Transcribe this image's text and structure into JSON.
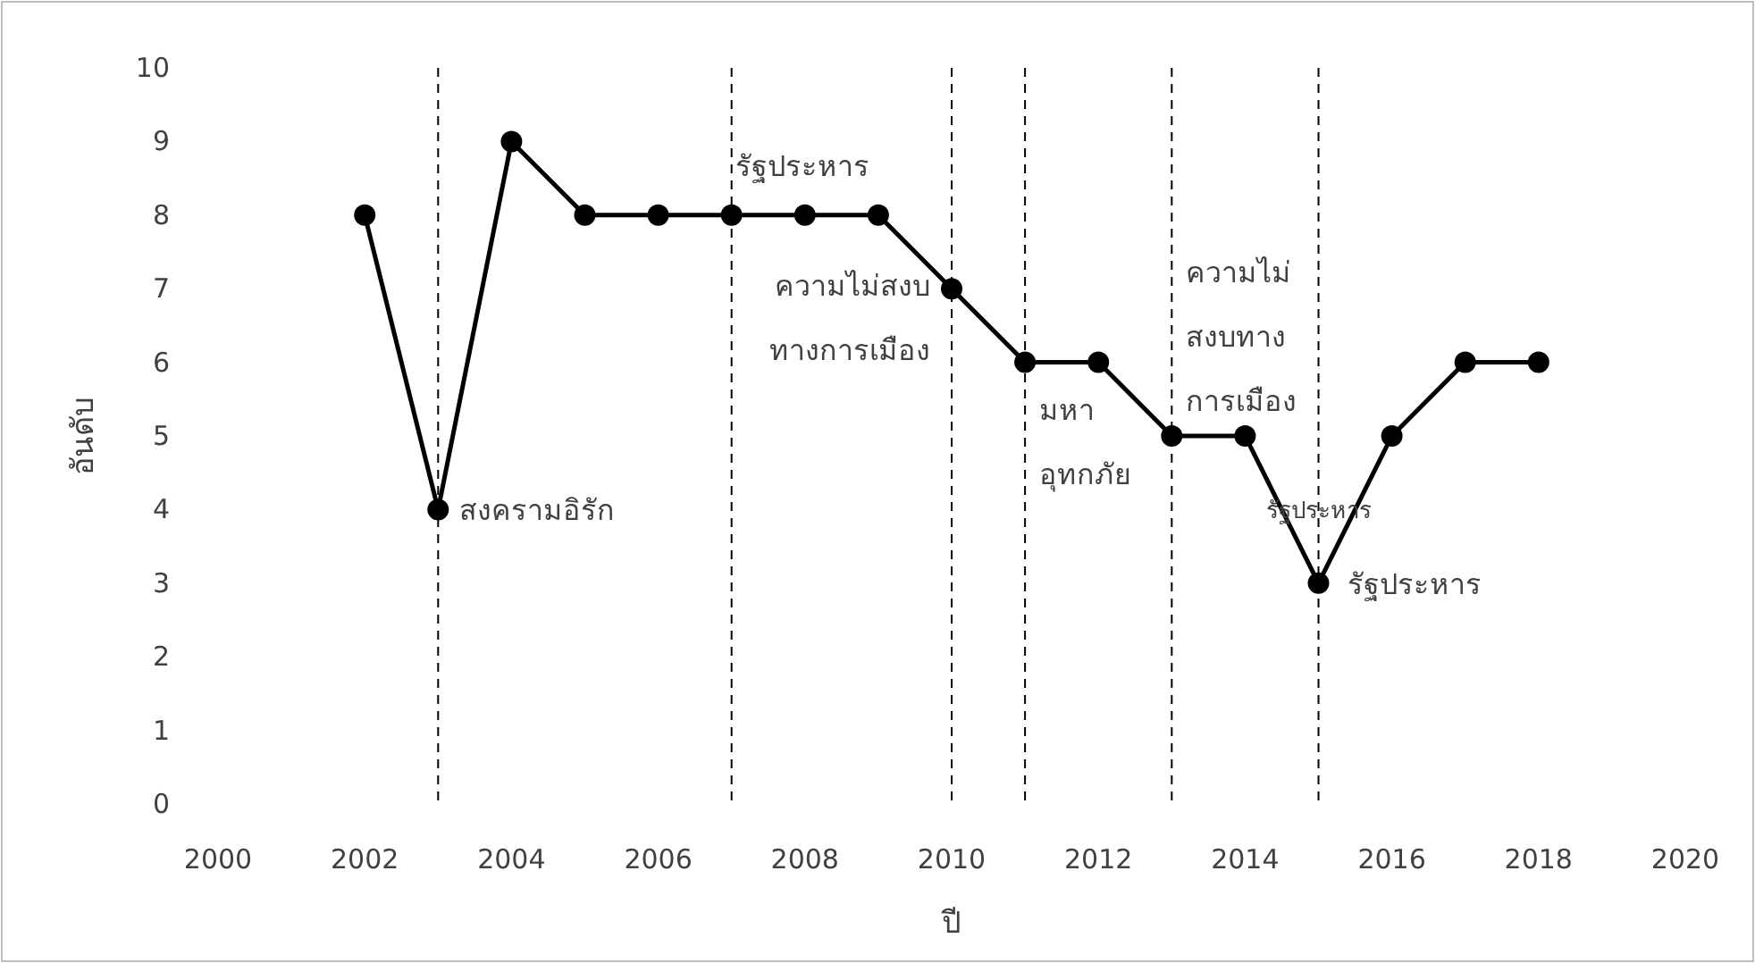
{
  "chart_data": {
    "type": "line",
    "xlabel": "ปี",
    "ylabel": "อันดับ",
    "x": [
      2002,
      2003,
      2004,
      2005,
      2006,
      2007,
      2008,
      2009,
      2010,
      2011,
      2012,
      2013,
      2014,
      2015,
      2016,
      2017,
      2018
    ],
    "series": [
      {
        "color": "#000000",
        "values": [
          8,
          4,
          9,
          8,
          8,
          8,
          8,
          8,
          7,
          6,
          6,
          5,
          5,
          3,
          5,
          6,
          6
        ]
      }
    ],
    "marker": "circle",
    "line_style": "solid",
    "xlim": [
      2000,
      2020
    ],
    "xticks": [
      2000,
      2002,
      2004,
      2006,
      2008,
      2010,
      2012,
      2014,
      2016,
      2018,
      2020
    ],
    "ylim": [
      0,
      10
    ],
    "yticks": [
      0,
      1,
      2,
      3,
      4,
      5,
      6,
      7,
      8,
      9,
      10
    ],
    "grid": false,
    "ref_lines": [
      {
        "axis": "x",
        "value": 2003,
        "color": "#000000",
        "line_style": "dashed"
      },
      {
        "axis": "x",
        "value": 2007,
        "color": "#000000",
        "line_style": "dashed"
      },
      {
        "axis": "x",
        "value": 2010,
        "color": "#000000",
        "line_style": "dashed"
      },
      {
        "axis": "x",
        "value": 2011,
        "color": "#000000",
        "line_style": "dashed"
      },
      {
        "axis": "x",
        "value": 2013,
        "color": "#000000",
        "line_style": "dashed"
      },
      {
        "axis": "x",
        "value": 2015,
        "color": "#000000",
        "line_style": "dashed"
      }
    ],
    "annotations": [
      {
        "text": "สงครามอิรัก",
        "x": 2003,
        "y": 4
      },
      {
        "text": "รัฐประหาร",
        "x": 2007,
        "y": 8
      },
      {
        "text": "ความไม่สงบ\nทางการเมือง",
        "x": 2010,
        "y": 7
      },
      {
        "text": "มหา\nอุทกภัย",
        "x": 2011,
        "y": 6
      },
      {
        "text": "ความไม่\nสงบทาง\nการเมือง",
        "x": 2013,
        "y": 5
      },
      {
        "text": "รัฐประหาร",
        "x": 2015,
        "y": 4
      },
      {
        "text": "รัฐประหาร",
        "x": 2015,
        "y": 3
      }
    ]
  }
}
